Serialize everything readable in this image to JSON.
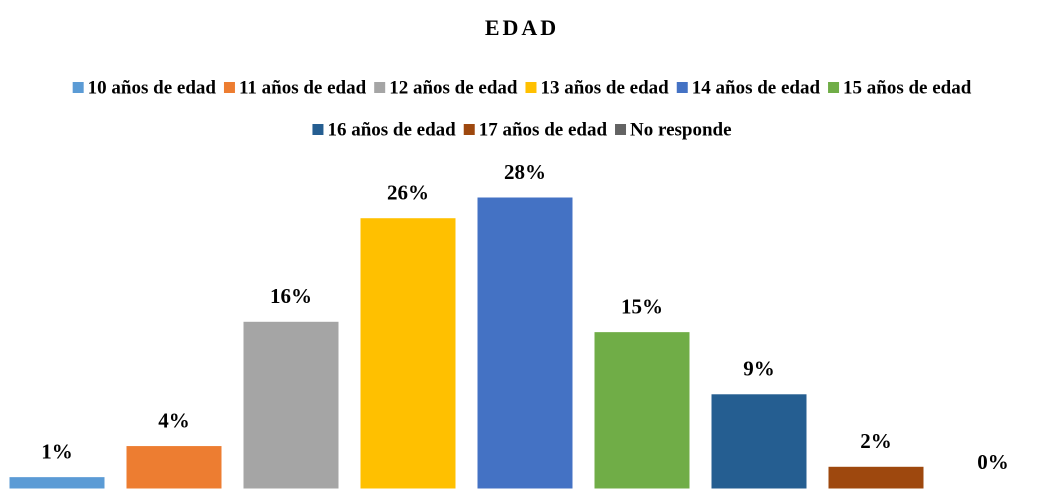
{
  "chart_data": {
    "type": "bar",
    "title": "EDAD",
    "series": [
      {
        "name": "10 años de edad",
        "color": "#5b9bd5",
        "values": [
          1
        ],
        "value_labels": [
          "1%"
        ]
      },
      {
        "name": "11 años de edad",
        "color": "#ed7d31",
        "values": [
          4
        ],
        "value_labels": [
          "4%"
        ]
      },
      {
        "name": "12 años de edad",
        "color": "#a5a5a5",
        "values": [
          16
        ],
        "value_labels": [
          "16%"
        ]
      },
      {
        "name": "13 años de edad",
        "color": "#ffc000",
        "values": [
          26
        ],
        "value_labels": [
          "26%"
        ]
      },
      {
        "name": "14 años de edad",
        "color": "#4472c4",
        "values": [
          28
        ],
        "value_labels": [
          "28%"
        ]
      },
      {
        "name": "15 años de edad",
        "color": "#70ad47",
        "values": [
          15
        ],
        "value_labels": [
          "15%"
        ]
      },
      {
        "name": "16 años de edad",
        "color": "#255e91",
        "values": [
          9
        ],
        "value_labels": [
          "9%"
        ]
      },
      {
        "name": "17 años de edad",
        "color": "#9e480e",
        "values": [
          2
        ],
        "value_labels": [
          "2%"
        ]
      },
      {
        "name": "No responde",
        "color": "#636363",
        "values": [
          0
        ],
        "value_labels": [
          "0%"
        ]
      }
    ],
    "legend": "top"
  }
}
